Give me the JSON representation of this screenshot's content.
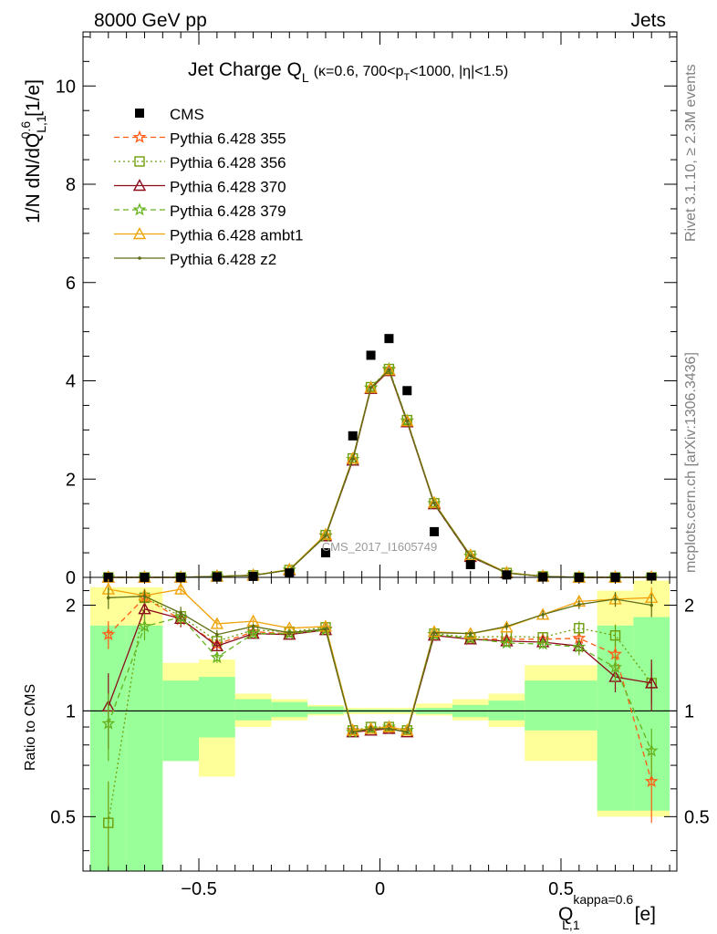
{
  "header": {
    "left": "8000 GeV pp",
    "right": "Jets"
  },
  "side_labels": {
    "rivet": "Rivet 3.1.10, ≥ 2.3M events",
    "mcplots": "mcplots.cern.ch [arXiv:1306.3436]"
  },
  "watermark": "CMS_2017_I1605749",
  "chart_data": [
    {
      "type": "scatter",
      "title": "Jet Charge Q",
      "title_sub": "L",
      "title_cut": "(κ=0.6, 700<p",
      "title_cut_sub": "T",
      "title_cut_end": "<1000, |η|<1.5)",
      "ylabel": "1/N dN/dQ",
      "ylabel_sup": "0.6",
      "ylabel_sub": "L,1",
      "ylabel_unit": "[1/e]",
      "xlim": [
        -0.82,
        0.82
      ],
      "ylim": [
        0,
        11.1
      ],
      "yticks": [
        "0",
        "2",
        "4",
        "6",
        "8",
        "10"
      ],
      "x": [
        -0.75,
        -0.65,
        -0.55,
        -0.45,
        -0.35,
        -0.25,
        -0.15,
        -0.075,
        -0.025,
        0.025,
        0.075,
        0.15,
        0.25,
        0.35,
        0.45,
        0.55,
        0.65,
        0.75
      ],
      "data": {
        "name": "CMS",
        "values": [
          0.0,
          0.0,
          0.0,
          0.01,
          0.02,
          0.09,
          0.5,
          2.88,
          4.52,
          4.86,
          3.8,
          0.93,
          0.26,
          0.05,
          0.01,
          0.0,
          0.0,
          0.0
        ]
      },
      "series": [
        {
          "name": "Pythia 6.428 355",
          "color": "#ff5c14",
          "marker": "star",
          "dash": "6,4",
          "values": [
            0.0,
            0.0,
            0.0,
            0.02,
            0.04,
            0.15,
            0.85,
            2.4,
            3.85,
            4.22,
            3.18,
            1.5,
            0.43,
            0.09,
            0.02,
            0.0,
            0.0,
            0.0
          ]
        },
        {
          "name": "Pythia 6.428 356",
          "color": "#6e9e0a",
          "marker": "square",
          "dash": "2,3",
          "values": [
            0.0,
            0.0,
            0.0,
            0.02,
            0.04,
            0.15,
            0.86,
            2.42,
            3.87,
            4.24,
            3.2,
            1.51,
            0.44,
            0.09,
            0.02,
            0.0,
            0.0,
            0.0
          ]
        },
        {
          "name": "Pythia 6.428 370",
          "color": "#8c0c1c",
          "marker": "triangle",
          "dash": "",
          "values": [
            0.0,
            0.0,
            0.0,
            0.02,
            0.04,
            0.15,
            0.84,
            2.38,
            3.84,
            4.2,
            3.16,
            1.49,
            0.42,
            0.09,
            0.02,
            0.0,
            0.0,
            0.0
          ]
        },
        {
          "name": "Pythia 6.428 379",
          "color": "#66b21e",
          "marker": "star",
          "dash": "6,4",
          "values": [
            0.0,
            0.0,
            0.0,
            0.02,
            0.04,
            0.15,
            0.84,
            2.4,
            3.86,
            4.24,
            3.19,
            1.5,
            0.43,
            0.09,
            0.02,
            0.0,
            0.0,
            0.0
          ]
        },
        {
          "name": "Pythia 6.428 ambt1",
          "color": "#f0a30a",
          "marker": "triangle",
          "dash": "",
          "values": [
            0.0,
            0.0,
            0.0,
            0.02,
            0.04,
            0.16,
            0.87,
            2.42,
            3.86,
            4.22,
            3.18,
            1.52,
            0.45,
            0.1,
            0.02,
            0.0,
            0.0,
            0.0
          ]
        },
        {
          "name": "Pythia 6.428 z2",
          "color": "#5e6e14",
          "marker": "dot",
          "dash": "",
          "values": [
            0.0,
            0.0,
            0.0,
            0.02,
            0.04,
            0.15,
            0.85,
            2.41,
            3.86,
            4.22,
            3.18,
            1.51,
            0.44,
            0.09,
            0.02,
            0.0,
            0.0,
            0.0
          ]
        }
      ]
    },
    {
      "type": "line",
      "ylabel": "Ratio to CMS",
      "xlabel": "Q",
      "xlabel_sup": "kappa=0.6",
      "xlabel_sub": "L,1",
      "xlabel_unit": "[e]",
      "xticks": [
        "−0.5",
        "0",
        "0.5"
      ],
      "xtick_values": [
        -0.5,
        0,
        0.5
      ],
      "yticks": [
        "0.5",
        "1",
        "2"
      ],
      "ytick_values": [
        0.5,
        1,
        2
      ],
      "scale": "log",
      "ylim": [
        0.35,
        2.4
      ],
      "bins": [
        [
          -0.8,
          -0.7
        ],
        [
          -0.7,
          -0.6
        ],
        [
          -0.6,
          -0.5
        ],
        [
          -0.5,
          -0.4
        ],
        [
          -0.4,
          -0.3
        ],
        [
          -0.3,
          -0.2
        ],
        [
          -0.2,
          -0.1
        ],
        [
          -0.1,
          -0.05
        ],
        [
          -0.05,
          0.0
        ],
        [
          0.0,
          0.05
        ],
        [
          0.05,
          0.1
        ],
        [
          0.1,
          0.2
        ],
        [
          0.2,
          0.3
        ],
        [
          0.3,
          0.4
        ],
        [
          0.4,
          0.5
        ],
        [
          0.5,
          0.6
        ],
        [
          0.6,
          0.7
        ],
        [
          0.7,
          0.8
        ]
      ],
      "band_stat": [
        [
          0.35,
          1.75
        ],
        [
          0.35,
          1.75
        ],
        [
          0.72,
          1.22
        ],
        [
          0.84,
          1.25
        ],
        [
          0.94,
          1.08
        ],
        [
          0.96,
          1.06
        ],
        [
          0.98,
          1.03
        ],
        [
          0.99,
          1.01
        ],
        [
          0.99,
          1.01
        ],
        [
          0.99,
          1.01
        ],
        [
          0.99,
          1.01
        ],
        [
          0.98,
          1.02
        ],
        [
          0.96,
          1.04
        ],
        [
          0.94,
          1.07
        ],
        [
          0.88,
          1.22
        ],
        [
          0.88,
          1.22
        ],
        [
          0.52,
          1.75
        ],
        [
          0.52,
          1.85
        ]
      ],
      "band_total": [
        [
          0.35,
          2.25
        ],
        [
          0.35,
          2.25
        ],
        [
          0.72,
          1.37
        ],
        [
          0.65,
          1.4
        ],
        [
          0.9,
          1.12
        ],
        [
          0.94,
          1.08
        ],
        [
          0.97,
          1.04
        ],
        [
          0.98,
          1.02
        ],
        [
          0.98,
          1.02
        ],
        [
          0.98,
          1.02
        ],
        [
          0.98,
          1.02
        ],
        [
          0.97,
          1.05
        ],
        [
          0.94,
          1.08
        ],
        [
          0.9,
          1.12
        ],
        [
          0.72,
          1.35
        ],
        [
          0.72,
          1.35
        ],
        [
          0.5,
          2.2
        ],
        [
          0.5,
          2.35
        ]
      ],
      "series": [
        {
          "name": "Pythia 6.428 355",
          "values": [
            1.65,
            2.1,
            1.82,
            1.55,
            1.68,
            1.66,
            1.71,
            0.88,
            0.89,
            0.89,
            0.88,
            1.65,
            1.6,
            1.6,
            1.6,
            1.61,
            1.45,
            0.63
          ],
          "err": [
            0.15,
            0.1,
            0.08,
            0.05,
            0.03,
            0.03,
            0.02,
            0.01,
            0.01,
            0.01,
            0.01,
            0.02,
            0.03,
            0.04,
            0.05,
            0.08,
            0.12,
            0.15
          ]
        },
        {
          "name": "Pythia 6.428 356",
          "values": [
            0.48,
            2.1,
            1.86,
            1.58,
            1.7,
            1.68,
            1.73,
            0.88,
            0.9,
            0.9,
            0.88,
            1.66,
            1.62,
            1.63,
            1.62,
            1.72,
            1.64,
            1.2
          ],
          "err": [
            0.15,
            0.1,
            0.08,
            0.05,
            0.03,
            0.03,
            0.02,
            0.01,
            0.01,
            0.01,
            0.01,
            0.02,
            0.03,
            0.04,
            0.05,
            0.08,
            0.12,
            0.15
          ]
        },
        {
          "name": "Pythia 6.428 370",
          "values": [
            1.03,
            1.95,
            1.83,
            1.53,
            1.66,
            1.65,
            1.7,
            0.87,
            0.88,
            0.89,
            0.87,
            1.64,
            1.6,
            1.58,
            1.57,
            1.53,
            1.25,
            1.2
          ],
          "err": [
            0.25,
            0.15,
            0.1,
            0.05,
            0.03,
            0.03,
            0.02,
            0.01,
            0.01,
            0.01,
            0.01,
            0.02,
            0.03,
            0.04,
            0.05,
            0.08,
            0.12,
            0.2
          ]
        },
        {
          "name": "Pythia 6.428 379",
          "values": [
            0.92,
            1.74,
            1.85,
            1.42,
            1.66,
            1.66,
            1.7,
            0.87,
            0.89,
            0.9,
            0.88,
            1.65,
            1.61,
            1.56,
            1.55,
            1.52,
            1.33,
            0.77
          ],
          "err": [
            0.2,
            0.15,
            0.1,
            0.05,
            0.03,
            0.03,
            0.02,
            0.01,
            0.01,
            0.01,
            0.01,
            0.02,
            0.03,
            0.04,
            0.05,
            0.08,
            0.12,
            0.12
          ]
        },
        {
          "name": "Pythia 6.428 ambt1",
          "values": [
            2.22,
            2.13,
            2.22,
            1.77,
            1.8,
            1.72,
            1.74,
            0.88,
            0.89,
            0.9,
            0.88,
            1.68,
            1.66,
            1.73,
            1.88,
            2.05,
            2.08,
            2.1
          ],
          "err": [
            0.15,
            0.1,
            0.08,
            0.05,
            0.03,
            0.03,
            0.02,
            0.01,
            0.01,
            0.01,
            0.01,
            0.02,
            0.03,
            0.04,
            0.05,
            0.06,
            0.1,
            0.15
          ]
        },
        {
          "name": "Pythia 6.428 z2",
          "values": [
            2.1,
            2.12,
            1.9,
            1.65,
            1.74,
            1.67,
            1.71,
            0.87,
            0.89,
            0.89,
            0.87,
            1.67,
            1.66,
            1.74,
            1.88,
            2.01,
            2.08,
            2.0
          ],
          "err": [
            0.15,
            0.1,
            0.08,
            0.05,
            0.03,
            0.03,
            0.02,
            0.01,
            0.01,
            0.01,
            0.01,
            0.02,
            0.03,
            0.04,
            0.05,
            0.06,
            0.1,
            0.15
          ]
        }
      ]
    }
  ]
}
